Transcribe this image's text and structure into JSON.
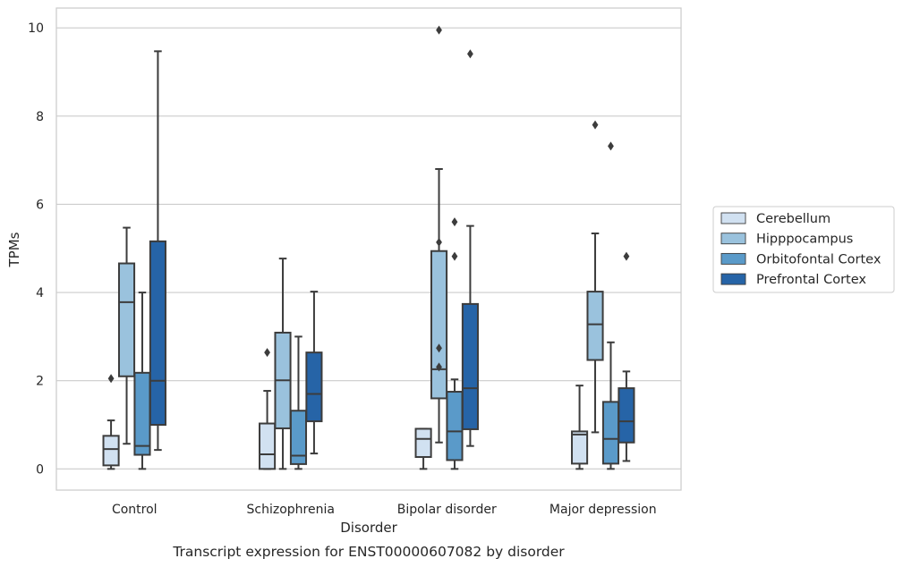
{
  "chart_data": {
    "type": "box",
    "caption": "Transcript expression for ENST00000607082 by disorder",
    "xlabel": "Disorder",
    "ylabel": "TPMs",
    "ylim": [
      -0.48,
      10.45
    ],
    "yticks": [
      0,
      2,
      4,
      6,
      8,
      10
    ],
    "grid": true,
    "legend_position": "right",
    "categories": [
      "Control",
      "Schizophrenia",
      "Bipolar disorder",
      "Major depression"
    ],
    "colors": {
      "Cerebellum": "#d1e1f1",
      "Hipppocampus": "#9ac2dd",
      "Orbitofontal Cortex": "#5a9ac9",
      "Prefrontal Cortex": "#2664a7",
      "line": "#3c3c3c",
      "grid": "#cccccc",
      "spine": "#cccccc"
    },
    "series": [
      {
        "name": "Cerebellum",
        "boxes": [
          {
            "q1": 0.08,
            "median": 0.45,
            "q3": 0.75,
            "whislo": 0.0,
            "whishi": 1.1,
            "fliers": [
              2.05
            ]
          },
          {
            "q1": 0.0,
            "median": 0.33,
            "q3": 1.03,
            "whislo": 0.0,
            "whishi": 1.77,
            "fliers": [
              2.64
            ]
          },
          {
            "q1": 0.27,
            "median": 0.68,
            "q3": 0.91,
            "whislo": 0.0,
            "whishi": 0.91,
            "fliers": []
          },
          {
            "q1": 0.12,
            "median": 0.78,
            "q3": 0.85,
            "whislo": 0.0,
            "whishi": 1.89,
            "fliers": []
          }
        ]
      },
      {
        "name": "Hipppocampus",
        "boxes": [
          {
            "q1": 2.1,
            "median": 3.78,
            "q3": 4.66,
            "whislo": 0.57,
            "whishi": 5.47,
            "fliers": []
          },
          {
            "q1": 0.92,
            "median": 2.01,
            "q3": 3.09,
            "whislo": 0.0,
            "whishi": 4.77,
            "fliers": []
          },
          {
            "q1": 1.6,
            "median": 2.26,
            "q3": 4.94,
            "whislo": 0.6,
            "whishi": 6.8,
            "fliers": [
              5.14,
              2.74,
              2.31,
              9.95
            ]
          },
          {
            "q1": 2.47,
            "median": 3.28,
            "q3": 4.02,
            "whislo": 0.83,
            "whishi": 5.34,
            "fliers": [
              7.8
            ]
          }
        ]
      },
      {
        "name": "Orbitofontal Cortex",
        "boxes": [
          {
            "q1": 0.32,
            "median": 0.52,
            "q3": 2.18,
            "whislo": 0.0,
            "whishi": 4.0,
            "fliers": []
          },
          {
            "q1": 0.11,
            "median": 0.3,
            "q3": 1.32,
            "whislo": 0.0,
            "whishi": 3.0,
            "fliers": []
          },
          {
            "q1": 0.2,
            "median": 0.85,
            "q3": 1.75,
            "whislo": 0.0,
            "whishi": 2.03,
            "fliers": [
              5.6,
              4.82
            ]
          },
          {
            "q1": 0.12,
            "median": 0.68,
            "q3": 1.52,
            "whislo": 0.0,
            "whishi": 2.87,
            "fliers": [
              7.32
            ]
          }
        ]
      },
      {
        "name": "Prefrontal Cortex",
        "boxes": [
          {
            "q1": 1.0,
            "median": 2.0,
            "q3": 5.16,
            "whislo": 0.43,
            "whishi": 9.47,
            "fliers": []
          },
          {
            "q1": 1.08,
            "median": 1.7,
            "q3": 2.64,
            "whislo": 0.35,
            "whishi": 4.02,
            "fliers": []
          },
          {
            "q1": 0.9,
            "median": 1.83,
            "q3": 3.74,
            "whislo": 0.52,
            "whishi": 5.51,
            "fliers": [
              9.41
            ]
          },
          {
            "q1": 0.6,
            "median": 1.08,
            "q3": 1.83,
            "whislo": 0.18,
            "whishi": 2.21,
            "fliers": [
              4.82
            ]
          }
        ]
      }
    ]
  }
}
